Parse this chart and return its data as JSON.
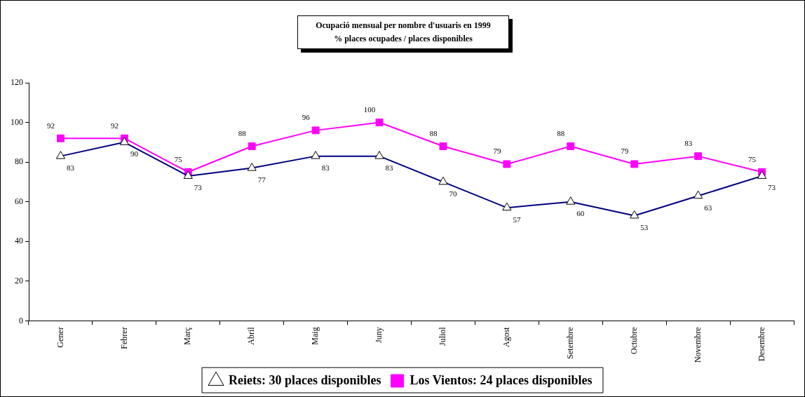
{
  "chart_data": {
    "type": "line",
    "title": "Ocupació mensual per nombre d'usuaris en 1999",
    "subtitle": "% places ocupades / places disponibles",
    "categories": [
      "Gener",
      "Febrer",
      "Març",
      "Abril",
      "Maig",
      "Juny",
      "Juliol",
      "Agost",
      "Setembre",
      "Octubre",
      "Novembre",
      "Desembre"
    ],
    "series": [
      {
        "name": "Reiets: 30 places disponibles",
        "color": "#000080",
        "marker": "triangle",
        "values": [
          83,
          90,
          73,
          77,
          83,
          83,
          70,
          57,
          60,
          53,
          63,
          73
        ]
      },
      {
        "name": "Los Vientos: 24 places disponibles",
        "color": "#ff00ff",
        "marker": "square",
        "values": [
          92,
          92,
          75,
          88,
          96,
          100,
          88,
          79,
          88,
          79,
          83,
          75
        ]
      }
    ],
    "ylim": [
      0,
      120
    ],
    "yticks": [
      0,
      20,
      40,
      60,
      80,
      100,
      120
    ],
    "grid": false,
    "legend": "bottom",
    "data_labels": true
  }
}
